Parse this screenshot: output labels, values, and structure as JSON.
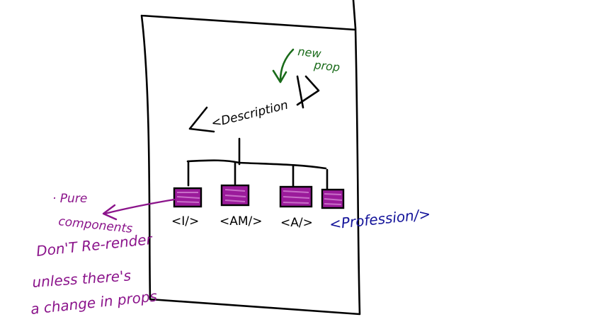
{
  "colors": {
    "ink": "#000000",
    "new_prop": "#1a6b1a",
    "profession": "#14149a",
    "pure_components": "#8b148b",
    "scribble_fill": "#9b1b9b"
  },
  "root_component": {
    "label": "<Description",
    "close": "/>"
  },
  "annotation_new_prop": {
    "line1": "new",
    "line2": "prop"
  },
  "children": [
    {
      "label": "<I/>"
    },
    {
      "label": "<AM/>"
    },
    {
      "label": "<A/>"
    },
    {
      "label": "<Profession/>"
    }
  ],
  "annotation_pure": {
    "line1": "· Pure",
    "line2": "components",
    "line3": "Don'T Re-render",
    "line4": "unless there's",
    "line5": "a change in props"
  }
}
